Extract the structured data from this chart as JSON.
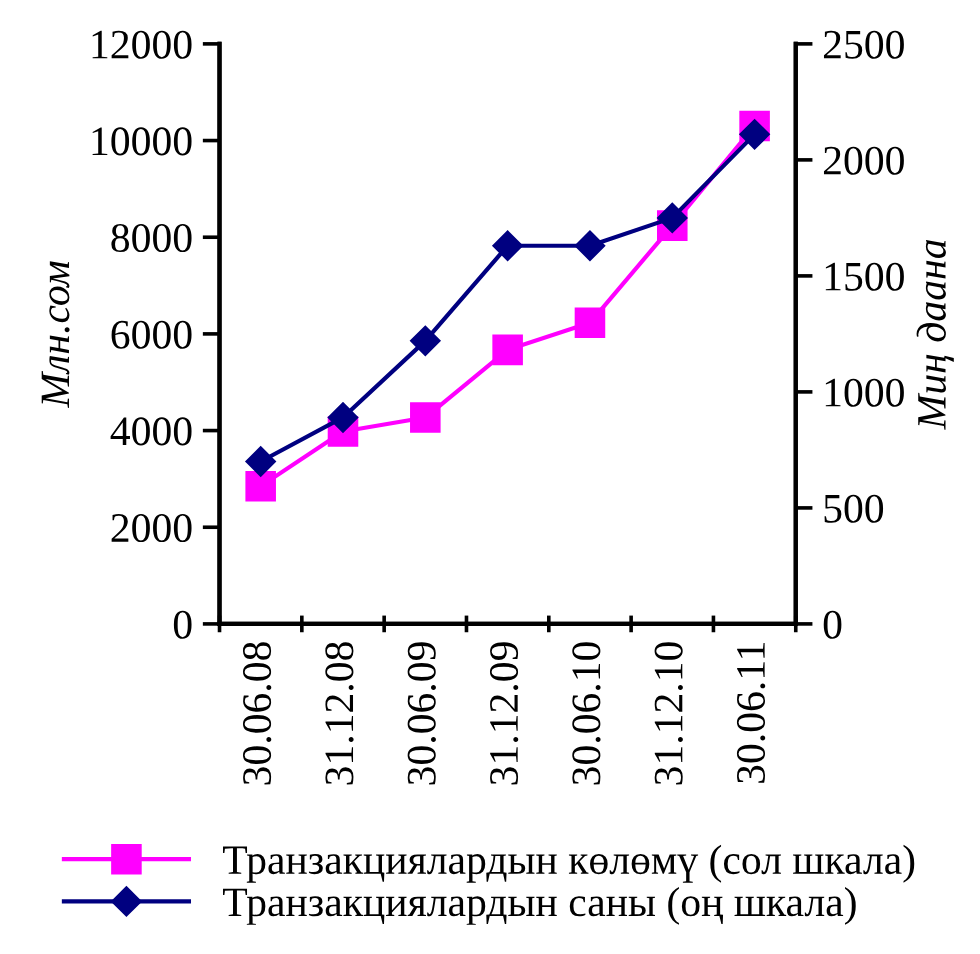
{
  "chart_data": {
    "type": "line",
    "categories": [
      "30.06.08",
      "31.12.08",
      "30.06.09",
      "31.12.09",
      "30.06.10",
      "31.12.10",
      "30.06.11"
    ],
    "ylabel": "Млн.сом",
    "y2label": "Миң даана",
    "series": [
      {
        "name": "Транзакциялардын көлөмү (сол шкала)",
        "color": "#ff00ff",
        "marker": "square",
        "values": [
          2850,
          3980,
          4270,
          5670,
          6230,
          8240,
          10300
        ]
      },
      {
        "name": "Транзакциялардын саны (оң шкала)",
        "color": "#000080",
        "marker": "diamond",
        "axis": "y2",
        "values": [
          700,
          890,
          1220,
          1630,
          1630,
          1750,
          2110
        ]
      }
    ],
    "ylim": [
      0,
      12000
    ],
    "yticks": [
      0,
      2000,
      4000,
      6000,
      8000,
      10000,
      12000
    ],
    "y2lim": [
      0,
      2500
    ],
    "y2ticks": [
      0,
      500,
      1000,
      1500,
      2000,
      2500
    ],
    "grid": false,
    "legend": "bottom"
  }
}
